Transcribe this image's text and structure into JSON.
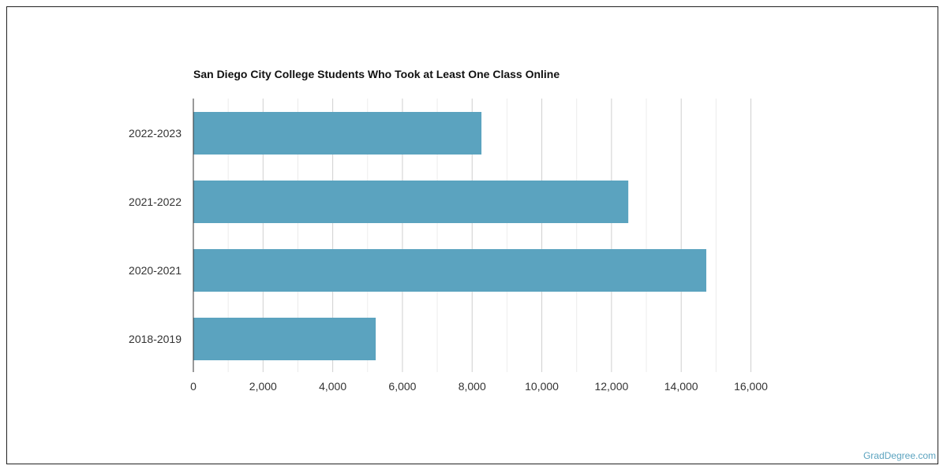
{
  "chart_data": {
    "type": "bar",
    "orientation": "horizontal",
    "title": "San Diego City College Students Who Took at Least One Class Online",
    "categories": [
      "2022-2023",
      "2021-2022",
      "2020-2021",
      "2018-2019"
    ],
    "values": [
      8268,
      12482,
      14720,
      5234
    ],
    "xlim": [
      0,
      16000
    ],
    "xticks": [
      0,
      2000,
      4000,
      6000,
      8000,
      10000,
      12000,
      14000,
      16000
    ],
    "xtick_labels": [
      "0",
      "2,000",
      "4,000",
      "6,000",
      "8,000",
      "10,000",
      "12,000",
      "14,000",
      "16,000"
    ],
    "xlabel": "",
    "ylabel": "",
    "grid": true,
    "legend": "none",
    "bar_color": "#5ba3bf"
  },
  "watermark": {
    "text": "GradDegree.com",
    "color": "#5ba3bf"
  }
}
